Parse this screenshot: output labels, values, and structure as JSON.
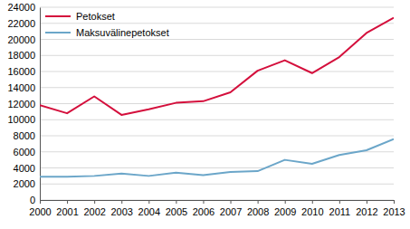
{
  "chart_data": {
    "type": "line",
    "x": [
      2000,
      2001,
      2002,
      2003,
      2004,
      2005,
      2006,
      2007,
      2008,
      2009,
      2010,
      2011,
      2012,
      2013
    ],
    "series": [
      {
        "name": "Petokset",
        "color": "#d40f3c",
        "values": [
          11800,
          10800,
          12900,
          10600,
          11300,
          12100,
          12300,
          13400,
          16100,
          17400,
          15800,
          17800,
          20800,
          22700
        ]
      },
      {
        "name": "Maksuvälinepetokset",
        "color": "#6ba6c9",
        "values": [
          2900,
          2900,
          3000,
          3300,
          3000,
          3400,
          3100,
          3500,
          3600,
          5000,
          4500,
          5600,
          6200,
          7600
        ]
      }
    ],
    "xlim": [
      2000,
      2013
    ],
    "xticks": [
      2000,
      2001,
      2002,
      2003,
      2004,
      2005,
      2006,
      2007,
      2008,
      2009,
      2010,
      2011,
      2012,
      2013
    ],
    "ylim": [
      0,
      24000
    ],
    "yticks": [
      0,
      2000,
      4000,
      6000,
      8000,
      10000,
      12000,
      14000,
      16000,
      18000,
      20000,
      22000,
      24000
    ],
    "grid": true,
    "legend": "top-left"
  }
}
